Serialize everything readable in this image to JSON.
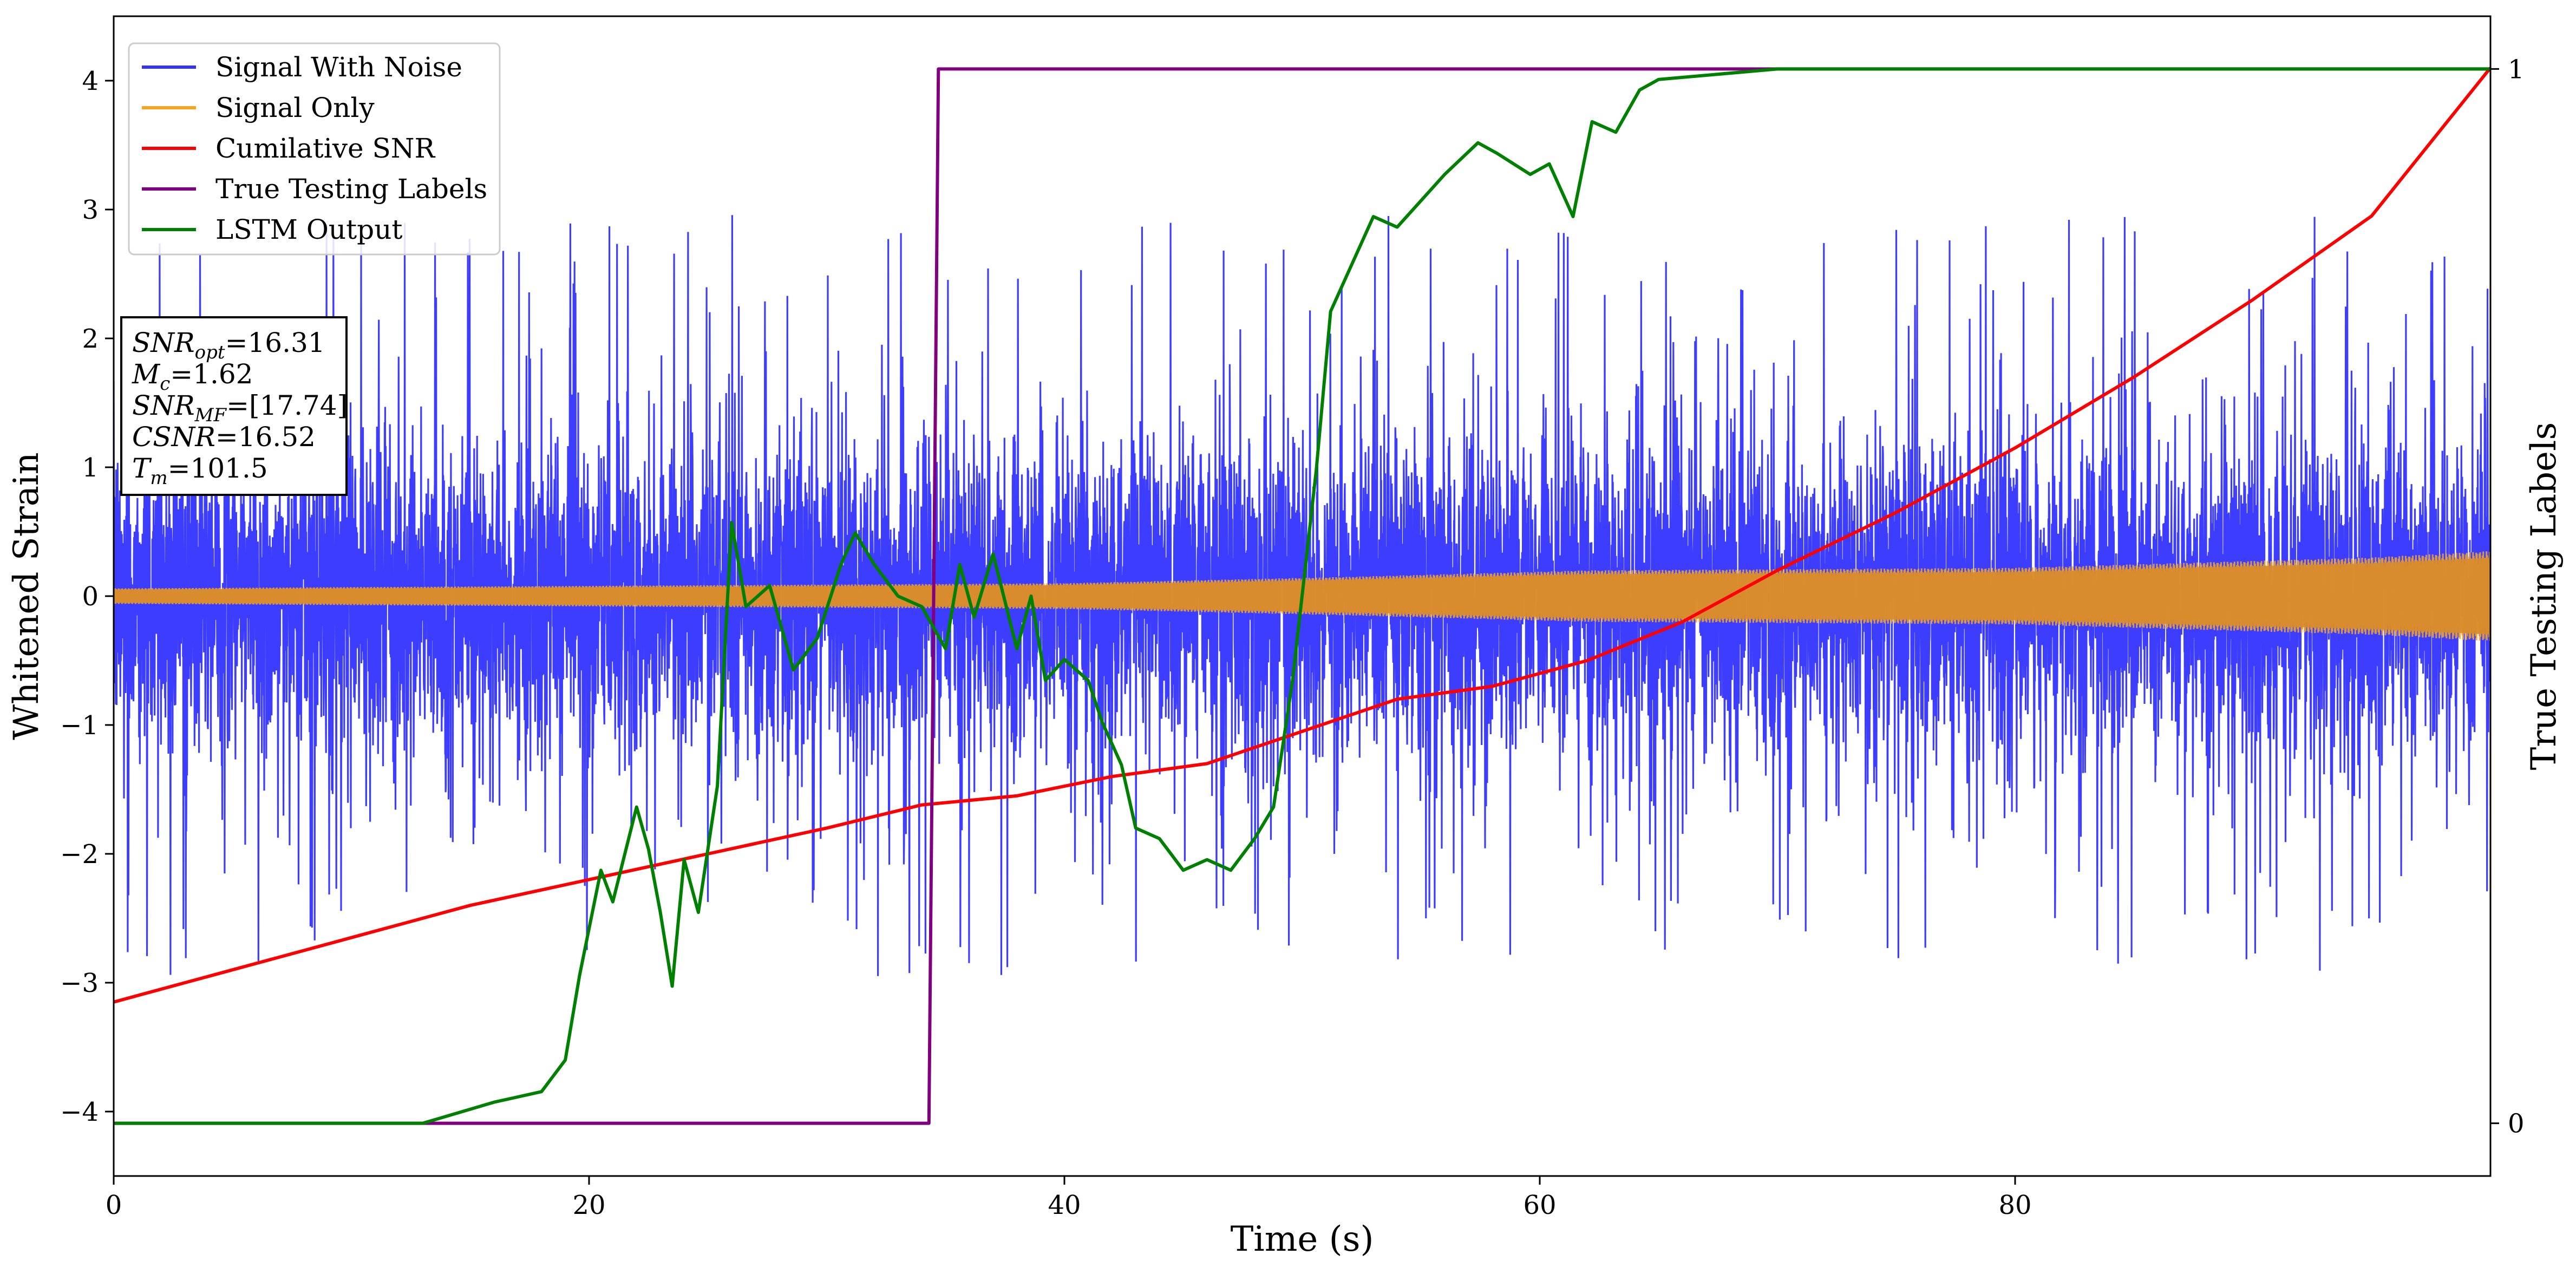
{
  "chart_data": {
    "type": "line",
    "xlabel": "Time (s)",
    "ylabel": "Whitened Strain",
    "y2label": "True Testing Labels",
    "xlim": [
      0,
      100
    ],
    "ylim": [
      -4.5,
      4.5
    ],
    "y2lim": [
      -0.05,
      1.05
    ],
    "xticks": [
      0,
      20,
      40,
      60,
      80
    ],
    "yticks": [
      -4,
      -3,
      -2,
      -1,
      0,
      1,
      2,
      3,
      4
    ],
    "y2ticks": [
      0,
      1
    ],
    "legend_position": "upper-left",
    "series": [
      {
        "name": "Signal With Noise",
        "color": "#3333ff",
        "kind": "noise",
        "amplitude": 0.6,
        "spikes": 2.6
      },
      {
        "name": "Signal Only",
        "color": "#f5a623",
        "kind": "chirp",
        "envelope_x": [
          0,
          20,
          40,
          52,
          62,
          80,
          95,
          100
        ],
        "envelope_y": [
          0.06,
          0.08,
          0.1,
          0.15,
          0.2,
          0.22,
          0.3,
          0.35
        ]
      },
      {
        "name": "Cumilative SNR",
        "color": "#ff0000",
        "axis": "y",
        "x": [
          0,
          5,
          10,
          15,
          20,
          25,
          30,
          34,
          38,
          42,
          46,
          50,
          54,
          58,
          62,
          66,
          70,
          75,
          80,
          85,
          90,
          95,
          100
        ],
        "y": [
          -3.15,
          -2.9,
          -2.65,
          -2.4,
          -2.2,
          -2.0,
          -1.8,
          -1.62,
          -1.55,
          -1.4,
          -1.3,
          -1.05,
          -0.8,
          -0.7,
          -0.5,
          -0.2,
          0.2,
          0.65,
          1.15,
          1.7,
          2.3,
          2.95,
          4.1
        ]
      },
      {
        "name": "True Testing Labels",
        "color": "#800080",
        "axis": "y2",
        "x": [
          0,
          34.3,
          34.7,
          100
        ],
        "y": [
          0,
          0,
          1,
          1
        ]
      },
      {
        "name": "LSTM Output",
        "color": "#008000",
        "axis": "y2",
        "x": [
          0,
          13,
          16,
          17,
          18,
          19,
          19.6,
          20.5,
          21,
          22,
          22.5,
          23,
          23.5,
          24,
          24.6,
          25.4,
          26,
          26.6,
          27.6,
          28.6,
          29.6,
          30.6,
          31.2,
          32,
          33,
          34,
          35,
          35.6,
          36.2,
          37,
          38,
          38.6,
          39.2,
          40,
          41,
          41.6,
          42.4,
          43,
          44,
          45,
          46,
          47,
          48,
          48.8,
          49.6,
          50.6,
          51.2,
          52,
          53,
          54,
          56,
          57.4,
          58.2,
          59.6,
          60.4,
          61.4,
          62.2,
          63.2,
          64.2,
          65,
          70,
          100
        ],
        "y": [
          0,
          0,
          0.02,
          0.025,
          0.03,
          0.06,
          0.14,
          0.24,
          0.21,
          0.3,
          0.26,
          0.2,
          0.13,
          0.25,
          0.2,
          0.32,
          0.57,
          0.49,
          0.51,
          0.43,
          0.46,
          0.53,
          0.56,
          0.53,
          0.5,
          0.49,
          0.45,
          0.53,
          0.48,
          0.54,
          0.45,
          0.5,
          0.42,
          0.44,
          0.42,
          0.38,
          0.34,
          0.28,
          0.27,
          0.24,
          0.25,
          0.24,
          0.27,
          0.3,
          0.42,
          0.62,
          0.77,
          0.81,
          0.86,
          0.85,
          0.9,
          0.93,
          0.92,
          0.9,
          0.91,
          0.86,
          0.95,
          0.94,
          0.98,
          0.99,
          1,
          1
        ]
      }
    ],
    "annotation": {
      "lines": [
        {
          "name": "SNR",
          "sub": "opt",
          "value": "=16.31"
        },
        {
          "name": "M",
          "sub": "c",
          "value": "=1.62"
        },
        {
          "name": "SNR",
          "sub": "MF",
          "value": "=[17.74]"
        },
        {
          "name": "CSNR",
          "sub": "",
          "value": "=16.52"
        },
        {
          "name": "T",
          "sub": "m",
          "value": "=101.5"
        }
      ]
    }
  }
}
